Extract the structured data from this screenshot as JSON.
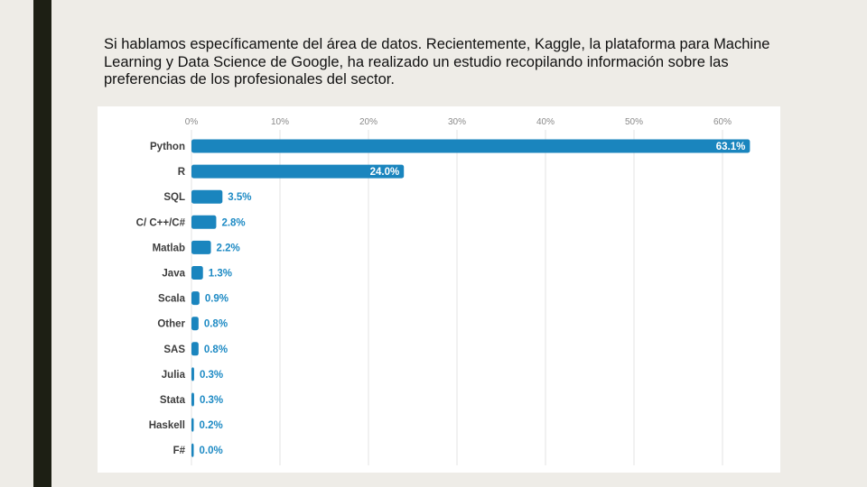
{
  "slide": {
    "intro_text": "Si hablamos específicamente del área de datos. Recientemente, Kaggle, la plataforma para Machine Learning y Data Science de Google, ha realizado un estudio recopilando información sobre las preferencias de los profesionales del sector."
  },
  "colors": {
    "bar": "#1a85be",
    "grid": "#e3e3e3",
    "value_outside": "#1d8ac4",
    "side_bar": "#1d1f14"
  },
  "chart_data": {
    "type": "bar",
    "orientation": "horizontal",
    "title": "",
    "xlabel": "",
    "ylabel": "",
    "xlim": [
      0,
      65
    ],
    "ticks": [
      0,
      10,
      20,
      30,
      40,
      50,
      60
    ],
    "tick_labels": [
      "0%",
      "10%",
      "20%",
      "30%",
      "40%",
      "50%",
      "60%"
    ],
    "categories": [
      "Python",
      "R",
      "SQL",
      "C/ C++/C#",
      "Matlab",
      "Java",
      "Scala",
      "Other",
      "SAS",
      "Julia",
      "Stata",
      "Haskell",
      "F#"
    ],
    "values": [
      63.1,
      24.0,
      3.5,
      2.8,
      2.2,
      1.3,
      0.9,
      0.8,
      0.8,
      0.3,
      0.3,
      0.2,
      0.0
    ],
    "value_labels": [
      "63.1%",
      "24.0%",
      "3.5%",
      "2.8%",
      "2.2%",
      "1.3%",
      "0.9%",
      "0.8%",
      "0.8%",
      "0.3%",
      "0.3%",
      "0.2%",
      "0.0%"
    ]
  }
}
